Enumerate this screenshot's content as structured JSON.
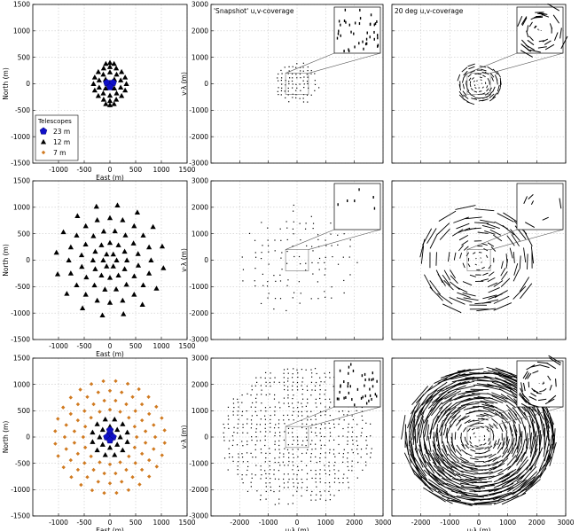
{
  "chart_data": {
    "type": "scatter",
    "layout": "3x3 grid",
    "array_panels": {
      "x_range": [
        -1500,
        1500
      ],
      "y_range": [
        -1500,
        1500
      ],
      "xticks": [
        -1000,
        -500,
        0,
        500,
        1000,
        1500
      ],
      "yticks": [
        -1500,
        -1000,
        -500,
        0,
        500,
        1000,
        1500
      ],
      "xlabel": "East (m)",
      "ylabel": "North (m)",
      "legend": {
        "title": "Telescopes",
        "position": "lower-left",
        "entries": [
          {
            "label": "23 m",
            "marker": "pentagon",
            "color": "#1010c8"
          },
          {
            "label": "12 m",
            "marker": "triangle",
            "color": "#000000"
          },
          {
            "label": "7 m",
            "marker": "diamond",
            "color": "#d07a20"
          }
        ]
      },
      "rows": [
        {
          "name": "row 1",
          "t23": [
            [
              0,
              0
            ],
            [
              -60,
              20
            ],
            [
              60,
              20
            ],
            [
              0,
              -60
            ]
          ],
          "t12_rings": [
            [
              120,
              4,
              45
            ],
            [
              220,
              10,
              0
            ],
            [
              320,
              16,
              0
            ]
          ],
          "t12_extra": [
            [
              -80,
              380
            ],
            [
              0,
              400
            ],
            [
              80,
              380
            ],
            [
              -80,
              -380
            ],
            [
              0,
              -400
            ],
            [
              80,
              -380
            ]
          ],
          "t7_rings": []
        },
        {
          "name": "row 2",
          "t23": [],
          "t12_rings": [
            [
              130,
              6,
              90
            ],
            [
              330,
              12,
              0
            ],
            [
              560,
              16,
              10
            ],
            [
              800,
              20,
              0
            ],
            [
              1050,
              16,
              8
            ]
          ],
          "t12_extra": [],
          "t7_rings": []
        },
        {
          "name": "row 3",
          "t23": [
            [
              0,
              60
            ],
            [
              -60,
              0
            ],
            [
              60,
              0
            ],
            [
              0,
              -60
            ],
            [
              0,
              130
            ]
          ],
          "t12_rings": [
            [
              200,
              8,
              0
            ],
            [
              350,
              12,
              15
            ]
          ],
          "t12_extra": [],
          "t7_rings": [
            [
              520,
              16,
              0
            ],
            [
              700,
              20,
              9
            ],
            [
              880,
              24,
              0
            ],
            [
              1070,
              28,
              6
            ]
          ]
        }
      ]
    },
    "uv_panels": {
      "x_range": [
        -3000,
        3000
      ],
      "y_range": [
        -3000,
        3000
      ],
      "xticks": [
        -2000,
        -1000,
        0,
        1000,
        2000,
        3000
      ],
      "yticks": [
        -3000,
        -2000,
        -1000,
        0,
        1000,
        2000,
        3000
      ],
      "xlabel": "u·λ (m)",
      "ylabel": "v·λ (m)",
      "column_titles": [
        "'Snapshot' u,v-coverage",
        "20 deg u,v-coverage"
      ],
      "inset_zoom_region": [
        [
          -400,
          400
        ],
        [
          -400,
          400
        ]
      ],
      "track_span_deg": 20,
      "coverage_radius_per_row": [
        800,
        2100,
        2700
      ],
      "sample_spacing_per_row": [
        130,
        220,
        160
      ]
    }
  }
}
